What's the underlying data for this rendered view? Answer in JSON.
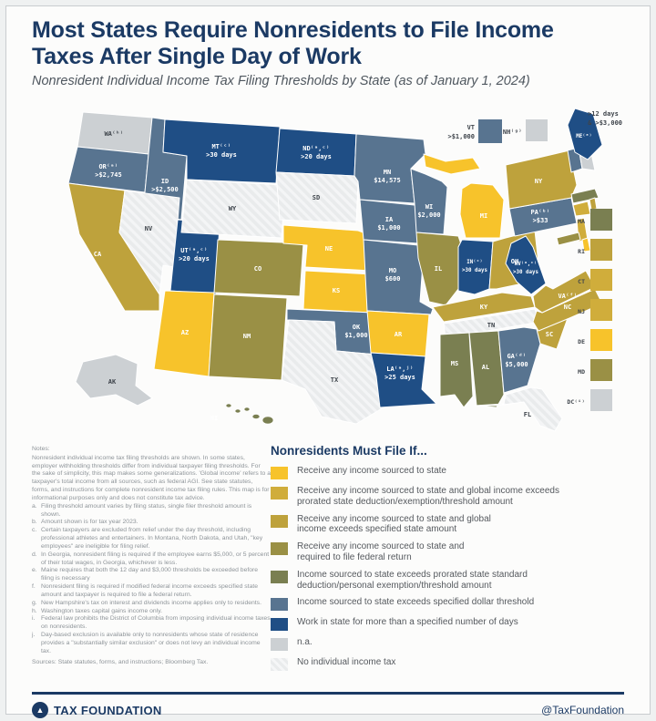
{
  "header": {
    "title_line1": "Most States Require Nonresidents to File Income",
    "title_line2": "Taxes After Single Day of Work",
    "subtitle": "Nonresident Individual Income Tax Filing Thresholds by State (as of January 1, 2024)"
  },
  "chart_data": {
    "type": "choropleth_map",
    "title": "Nonresident Individual Income Tax Filing Thresholds by State (as of January 1, 2024)",
    "categories": {
      "any": {
        "color": "#F7C32B",
        "text": "#FFFFFF",
        "label": "Receive any income sourced to state"
      },
      "global_prorated": {
        "color": "#D0AD3B",
        "text": "#FFFFFF",
        "label": "Receive any income sourced to state and global income exceeds\nprorated state deduction/exemption/threshold amount"
      },
      "global_specified": {
        "color": "#BEA23C",
        "text": "#FFFFFF",
        "label": "Receive any income sourced to state and global\nincome exceeds specified state amount"
      },
      "federal": {
        "color": "#9A9045",
        "text": "#FFFFFF",
        "label": "Receive any income sourced to state and\nrequired to file federal return"
      },
      "prorated_std": {
        "color": "#7A7F51",
        "text": "#FFFFFF",
        "label": "Income sourced to state exceeds prorated state standard\ndeduction/personal exemption/threshold amount"
      },
      "dollar": {
        "color": "#587490",
        "text": "#FFFFFF",
        "label": "Income sourced to state exceeds specified dollar threshold"
      },
      "days": {
        "color": "#1F4E85",
        "text": "#FFFFFF",
        "label": "Work in state for more than a specified number of days"
      },
      "na": {
        "color": "#CCD0D3",
        "text": "#3E444B",
        "label": "n.a."
      },
      "notax": {
        "color": "#E9EBEC",
        "text": "#3E444B",
        "hatch": true,
        "label": "No individual income tax"
      }
    },
    "legend_order": [
      "any",
      "global_prorated",
      "global_specified",
      "federal",
      "prorated_std",
      "dollar",
      "days",
      "na",
      "notax"
    ],
    "states": [
      {
        "code": "WA",
        "label": "WA⁽ʰ⁾",
        "value": "",
        "cat": "na"
      },
      {
        "code": "OR",
        "label": "OR⁽ᵃ⁾",
        "value": ">$2,745",
        "cat": "dollar"
      },
      {
        "code": "CA",
        "label": "CA",
        "value": "",
        "cat": "global_specified"
      },
      {
        "code": "ID",
        "label": "ID",
        "value": ">$2,500",
        "cat": "dollar"
      },
      {
        "code": "NV",
        "label": "NV",
        "value": "",
        "cat": "notax"
      },
      {
        "code": "UT",
        "label": "UT⁽ᵃ,ᶜ⁾",
        "value": ">20 days",
        "cat": "days"
      },
      {
        "code": "AZ",
        "label": "AZ",
        "value": "",
        "cat": "any"
      },
      {
        "code": "MT",
        "label": "MT⁽ᶜ⁾",
        "value": ">30 days",
        "cat": "days"
      },
      {
        "code": "WY",
        "label": "WY",
        "value": "",
        "cat": "notax"
      },
      {
        "code": "CO",
        "label": "CO",
        "value": "",
        "cat": "federal"
      },
      {
        "code": "NM",
        "label": "NM",
        "value": "",
        "cat": "federal"
      },
      {
        "code": "ND",
        "label": "ND⁽ᵃ,ᶜ⁾",
        "value": ">20 days",
        "cat": "days"
      },
      {
        "code": "SD",
        "label": "SD",
        "value": "",
        "cat": "notax"
      },
      {
        "code": "NE",
        "label": "NE",
        "value": "",
        "cat": "any"
      },
      {
        "code": "KS",
        "label": "KS",
        "value": "",
        "cat": "any"
      },
      {
        "code": "OK",
        "label": "OK",
        "value": "$1,000",
        "cat": "dollar"
      },
      {
        "code": "TX",
        "label": "TX",
        "value": "",
        "cat": "notax"
      },
      {
        "code": "MN",
        "label": "MN",
        "value": "$14,575",
        "cat": "dollar"
      },
      {
        "code": "IA",
        "label": "IA",
        "value": "$1,000",
        "cat": "dollar"
      },
      {
        "code": "MO",
        "label": "MO",
        "value": "$600",
        "cat": "dollar"
      },
      {
        "code": "AR",
        "label": "AR",
        "value": "",
        "cat": "any"
      },
      {
        "code": "LA",
        "label": "LA⁽ᵃ,ʲ⁾",
        "value": ">25 days",
        "cat": "days"
      },
      {
        "code": "WI",
        "label": "WI",
        "value": "$2,000",
        "cat": "dollar"
      },
      {
        "code": "IL",
        "label": "IL",
        "value": "",
        "cat": "federal"
      },
      {
        "code": "MI",
        "label": "MI",
        "value": "",
        "cat": "any"
      },
      {
        "code": "IN",
        "label": "IN⁽ᶜ⁾",
        "value": ">30 days",
        "cat": "days"
      },
      {
        "code": "OH",
        "label": "OH",
        "value": "",
        "cat": "global_specified"
      },
      {
        "code": "KY",
        "label": "KY",
        "value": "",
        "cat": "global_specified"
      },
      {
        "code": "TN",
        "label": "TN",
        "value": "",
        "cat": "notax"
      },
      {
        "code": "MS",
        "label": "MS",
        "value": "",
        "cat": "prorated_std"
      },
      {
        "code": "AL",
        "label": "AL",
        "value": "",
        "cat": "prorated_std"
      },
      {
        "code": "GA",
        "label": "GA⁽ᵈ⁾",
        "value": "$5,000",
        "cat": "dollar"
      },
      {
        "code": "FL",
        "label": "FL",
        "value": "",
        "cat": "notax"
      },
      {
        "code": "SC",
        "label": "SC",
        "value": "",
        "cat": "global_specified"
      },
      {
        "code": "NC",
        "label": "NC",
        "value": "",
        "cat": "global_specified"
      },
      {
        "code": "VA",
        "label": "VA⁽ᶠ⁾",
        "value": "",
        "cat": "global_specified"
      },
      {
        "code": "WV",
        "label": "WV⁽ᵃ,ᶜ⁾",
        "value": ">30 days",
        "cat": "days"
      },
      {
        "code": "PA",
        "label": "PA⁽ᵇ⁾",
        "value": ">$33",
        "cat": "dollar"
      },
      {
        "code": "NY",
        "label": "NY",
        "value": "",
        "cat": "global_specified"
      },
      {
        "code": "VT",
        "label": "VT",
        "value": ">$1,000",
        "cat": "dollar"
      },
      {
        "code": "NH",
        "label": "NH⁽ᵍ⁾",
        "value": "",
        "cat": "na"
      },
      {
        "code": "ME",
        "label": "ME⁽ᵉ⁾",
        "value": "",
        "cat": "days"
      },
      {
        "code": "MA",
        "label": "MA",
        "value": "",
        "cat": "prorated_std"
      },
      {
        "code": "RI",
        "label": "RI",
        "value": "",
        "cat": "global_specified"
      },
      {
        "code": "CT",
        "label": "CT",
        "value": "",
        "cat": "global_prorated"
      },
      {
        "code": "NJ",
        "label": "NJ",
        "value": "",
        "cat": "global_prorated"
      },
      {
        "code": "DE",
        "label": "DE",
        "value": "",
        "cat": "any"
      },
      {
        "code": "MD",
        "label": "MD",
        "value": "",
        "cat": "federal"
      },
      {
        "code": "DC",
        "label": "DC⁽ⁱ⁾",
        "value": "",
        "cat": "na"
      },
      {
        "code": "AK",
        "label": "AK",
        "value": "",
        "cat": "na"
      },
      {
        "code": "HI",
        "label": "HI",
        "value": "",
        "cat": "prorated_std"
      }
    ],
    "small_state_column": [
      "MA",
      "RI",
      "CT",
      "NJ",
      "DE",
      "MD",
      "DC"
    ],
    "callouts": [
      "VT",
      "NH"
    ],
    "me_note_line1": ">12 days",
    "me_note_line2": "& >$3,000"
  },
  "legend": {
    "title": "Nonresidents Must File If..."
  },
  "notes": {
    "heading": "Notes:",
    "intro": "Nonresident individual income tax filing thresholds are shown. In some states, employer withholding thresholds differ from individual taxpayer filing thresholds. For the sake of simplicity, this map makes some generalizations. 'Global income' refers to a taxpayer's total income from all sources, such as federal AGI. See state statutes, forms, and instructions for complete nonresident income tax filing rules. This map is for informational purposes only and does not constitute tax advice.",
    "items": [
      {
        "letter": "a.",
        "text": "Filing threshold amount varies by filing status, single filer threshold amount is shown."
      },
      {
        "letter": "b.",
        "text": "Amount shown is for tax year 2023."
      },
      {
        "letter": "c.",
        "text": "Certain taxpayers are excluded from relief under the day threshold, including professional athletes and entertainers. In Montana, North Dakota, and Utah, \"key employees\" are ineligible for filing relief."
      },
      {
        "letter": "d.",
        "text": "In Georgia, nonresident filing is required if the employee earns $5,000, or 5 percent of their total wages, in Georgia, whichever is less."
      },
      {
        "letter": "e.",
        "text": "Maine requires that both the 12 day and $3,000 thresholds be exceeded before filing is necessary"
      },
      {
        "letter": "f.",
        "text": "Nonresident filing is required if modified federal income exceeds specified state amount and taxpayer is required to file a federal return."
      },
      {
        "letter": "g.",
        "text": "New Hampshire's tax on interest and dividends income applies only to residents."
      },
      {
        "letter": "h.",
        "text": "Washington taxes capital gains income only."
      },
      {
        "letter": "i.",
        "text": "Federal law prohibits the District of Columbia from imposing individual income taxes on nonresidents."
      },
      {
        "letter": "j.",
        "text": "Day-based exclusion is available only to nonresidents whose state of residence provides a \"substantially similar exclusion\" or does not levy an individual income tax."
      }
    ],
    "sources": "Sources: State statutes, forms, and instructions; Bloomberg Tax."
  },
  "footer": {
    "brand": "TAX FOUNDATION",
    "handle": "@TaxFoundation"
  }
}
